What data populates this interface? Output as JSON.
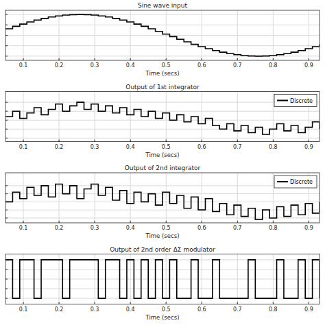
{
  "chart_data": [
    {
      "type": "line",
      "title": "Sine wave input",
      "x_label": "Time (secs)",
      "x": [
        0.05,
        0.07,
        0.09,
        0.11,
        0.13,
        0.15,
        0.17,
        0.19,
        0.21,
        0.23,
        0.25,
        0.27,
        0.29,
        0.31,
        0.33,
        0.35,
        0.37,
        0.39,
        0.41,
        0.43,
        0.45,
        0.47,
        0.49,
        0.51,
        0.53,
        0.55,
        0.57,
        0.59,
        0.61,
        0.63,
        0.65,
        0.67,
        0.69,
        0.71,
        0.73,
        0.75,
        0.77,
        0.79,
        0.81,
        0.83,
        0.85,
        0.87,
        0.89,
        0.91,
        0.93
      ],
      "series": [
        {
          "color": "#000000",
          "values": [
            0.31,
            0.43,
            0.54,
            0.64,
            0.73,
            0.81,
            0.88,
            0.93,
            0.97,
            0.99,
            1.0,
            0.99,
            0.97,
            0.93,
            0.88,
            0.81,
            0.73,
            0.64,
            0.54,
            0.43,
            0.31,
            0.19,
            0.06,
            -0.06,
            -0.19,
            -0.31,
            -0.43,
            -0.54,
            -0.64,
            -0.73,
            -0.81,
            -0.88,
            -0.93,
            -0.97,
            -0.99,
            -1.0,
            -0.99,
            -0.97,
            -0.93,
            -0.88,
            -0.81,
            -0.73,
            -0.64,
            -0.54,
            -0.43
          ]
        }
      ],
      "xlim": [
        0.05,
        0.93
      ],
      "xticks": [
        0.1,
        0.2,
        0.3,
        0.4,
        0.5,
        0.6,
        0.7,
        0.8,
        0.9
      ],
      "ylim": [
        -1.2,
        1.2
      ],
      "yticks": [
        -1,
        -0.5,
        0,
        0.5,
        1
      ],
      "grid": true,
      "tick_labels": "x",
      "line_style": "step"
    },
    {
      "type": "line",
      "title": "Output of 1st integrator",
      "x_label": "Time (secs)",
      "x": [
        0.05,
        0.07,
        0.09,
        0.11,
        0.13,
        0.15,
        0.17,
        0.19,
        0.21,
        0.23,
        0.25,
        0.27,
        0.29,
        0.31,
        0.33,
        0.35,
        0.37,
        0.39,
        0.41,
        0.43,
        0.45,
        0.47,
        0.49,
        0.51,
        0.53,
        0.55,
        0.57,
        0.59,
        0.61,
        0.63,
        0.65,
        0.67,
        0.69,
        0.71,
        0.73,
        0.75,
        0.77,
        0.79,
        0.81,
        0.83,
        0.85,
        0.87,
        0.89,
        0.91,
        0.93
      ],
      "series": [
        {
          "name": "Discrete",
          "color": "#000000",
          "values": [
            0.2,
            0.5,
            0.1,
            0.4,
            0.7,
            0.3,
            0.6,
            0.9,
            0.5,
            0.8,
            1.0,
            0.6,
            0.9,
            0.5,
            0.8,
            0.4,
            0.7,
            0.3,
            0.6,
            0.2,
            0.5,
            0.1,
            0.4,
            0.0,
            0.3,
            -0.1,
            0.2,
            -0.2,
            0.1,
            -0.3,
            -0.5,
            -0.2,
            -0.6,
            -0.3,
            -0.7,
            -0.4,
            -0.8,
            -0.5,
            -0.2,
            -0.6,
            -0.3,
            -0.7,
            -0.4,
            -0.1,
            -0.5
          ]
        }
      ],
      "xlim": [
        0.05,
        0.93
      ],
      "xticks": [
        0.1,
        0.2,
        0.3,
        0.4,
        0.5,
        0.6,
        0.7,
        0.8,
        0.9
      ],
      "ylim": [
        -1.2,
        1.6
      ],
      "yticks": [
        -1,
        -0.5,
        0,
        0.5,
        1
      ],
      "grid": true,
      "tick_labels": "x",
      "line_style": "step",
      "legend": "northeast"
    },
    {
      "type": "line",
      "title": "Output of 2nd integrator",
      "x_label": "Time (secs)",
      "x": [
        0.05,
        0.07,
        0.09,
        0.11,
        0.13,
        0.15,
        0.17,
        0.19,
        0.21,
        0.23,
        0.25,
        0.27,
        0.29,
        0.31,
        0.33,
        0.35,
        0.37,
        0.39,
        0.41,
        0.43,
        0.45,
        0.47,
        0.49,
        0.51,
        0.53,
        0.55,
        0.57,
        0.59,
        0.61,
        0.63,
        0.65,
        0.67,
        0.69,
        0.71,
        0.73,
        0.75,
        0.77,
        0.79,
        0.81,
        0.83,
        0.85,
        0.87,
        0.89,
        0.91,
        0.93
      ],
      "series": [
        {
          "name": "Discrete",
          "color": "#000000",
          "values": [
            0.0,
            0.6,
            0.2,
            0.9,
            0.4,
            1.0,
            0.3,
            1.1,
            0.5,
            1.0,
            0.2,
            0.8,
            1.1,
            0.4,
            0.9,
            0.1,
            0.7,
            -0.1,
            0.6,
            0.0,
            0.5,
            -0.2,
            0.6,
            -0.1,
            0.4,
            -0.4,
            0.3,
            -0.5,
            0.2,
            -0.6,
            -0.1,
            -0.8,
            -0.2,
            -0.9,
            -0.4,
            -1.1,
            -0.5,
            -1.0,
            -0.3,
            -0.9,
            -0.2,
            -0.8,
            -0.1,
            -0.7,
            0.0
          ]
        }
      ],
      "xlim": [
        0.05,
        0.93
      ],
      "xticks": [
        0.1,
        0.2,
        0.3,
        0.4,
        0.5,
        0.6,
        0.7,
        0.8,
        0.9
      ],
      "ylim": [
        -1.3,
        1.8
      ],
      "yticks": [
        -1,
        -0.5,
        0,
        0.5,
        1
      ],
      "grid": true,
      "tick_labels": "x",
      "line_style": "step",
      "legend": "northeast"
    },
    {
      "type": "line",
      "title": "Output of 2nd order ΔΣ modulator",
      "x_label": "Time (secs)",
      "x": [
        0.05,
        0.07,
        0.09,
        0.11,
        0.13,
        0.15,
        0.17,
        0.19,
        0.21,
        0.23,
        0.25,
        0.27,
        0.29,
        0.31,
        0.33,
        0.35,
        0.37,
        0.39,
        0.41,
        0.43,
        0.45,
        0.47,
        0.49,
        0.51,
        0.53,
        0.55,
        0.57,
        0.59,
        0.61,
        0.63,
        0.65,
        0.67,
        0.69,
        0.71,
        0.73,
        0.75,
        0.77,
        0.79,
        0.81,
        0.83,
        0.85,
        0.87,
        0.89,
        0.91,
        0.93
      ],
      "series": [
        {
          "color": "#000000",
          "values": [
            1,
            -1,
            1,
            1,
            -1,
            1,
            1,
            1,
            -1,
            1,
            1,
            1,
            1,
            -1,
            1,
            1,
            -1,
            1,
            -1,
            1,
            -1,
            1,
            -1,
            1,
            -1,
            -1,
            1,
            -1,
            -1,
            1,
            -1,
            -1,
            -1,
            -1,
            1,
            -1,
            -1,
            -1,
            1,
            -1,
            -1,
            1,
            -1,
            1,
            -1
          ]
        }
      ],
      "xlim": [
        0.05,
        0.93
      ],
      "xticks": [
        0.1,
        0.2,
        0.3,
        0.4,
        0.5,
        0.6,
        0.7,
        0.8,
        0.9
      ],
      "ylim": [
        -1.3,
        1.3
      ],
      "yticks": [
        -1,
        -0.5,
        0,
        0.5,
        1
      ],
      "grid": true,
      "tick_labels": "x",
      "line_style": "step"
    }
  ]
}
